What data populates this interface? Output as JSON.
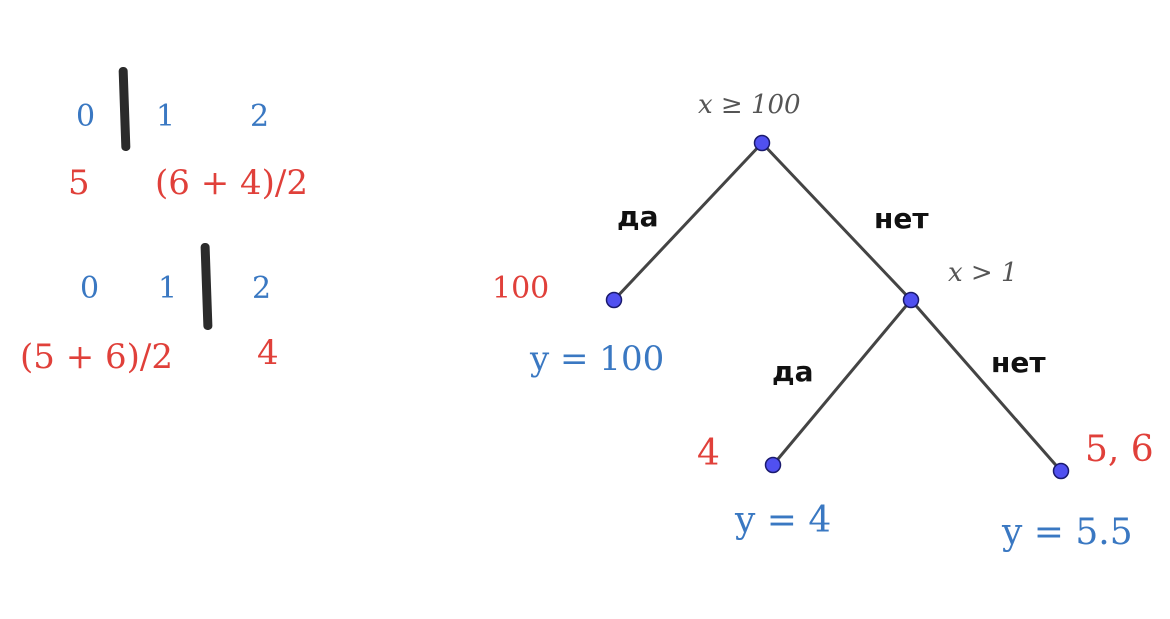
{
  "left_panel": {
    "split1": {
      "indices": [
        "0",
        "1",
        "2"
      ],
      "left_value": "5",
      "right_value": "(6 + 4)/2"
    },
    "split2": {
      "indices": [
        "0",
        "1",
        "2"
      ],
      "left_value": "(5 + 6)/2",
      "right_value": "4"
    }
  },
  "tree": {
    "root_condition": "x ≥ 100",
    "inner_condition": "x > 1",
    "edge_yes": "да",
    "edge_no": "нет",
    "leaf_left": {
      "samples": "100",
      "prediction": "y = 100"
    },
    "leaf_mid": {
      "samples": "4",
      "prediction": "y = 4"
    },
    "leaf_right": {
      "samples": "5, 6",
      "prediction": "y = 5.5"
    }
  },
  "colors": {
    "index_blue": "#3a78c2",
    "value_red": "#e0403a",
    "node_fill": "#5050f0",
    "edge_line": "#444444"
  }
}
